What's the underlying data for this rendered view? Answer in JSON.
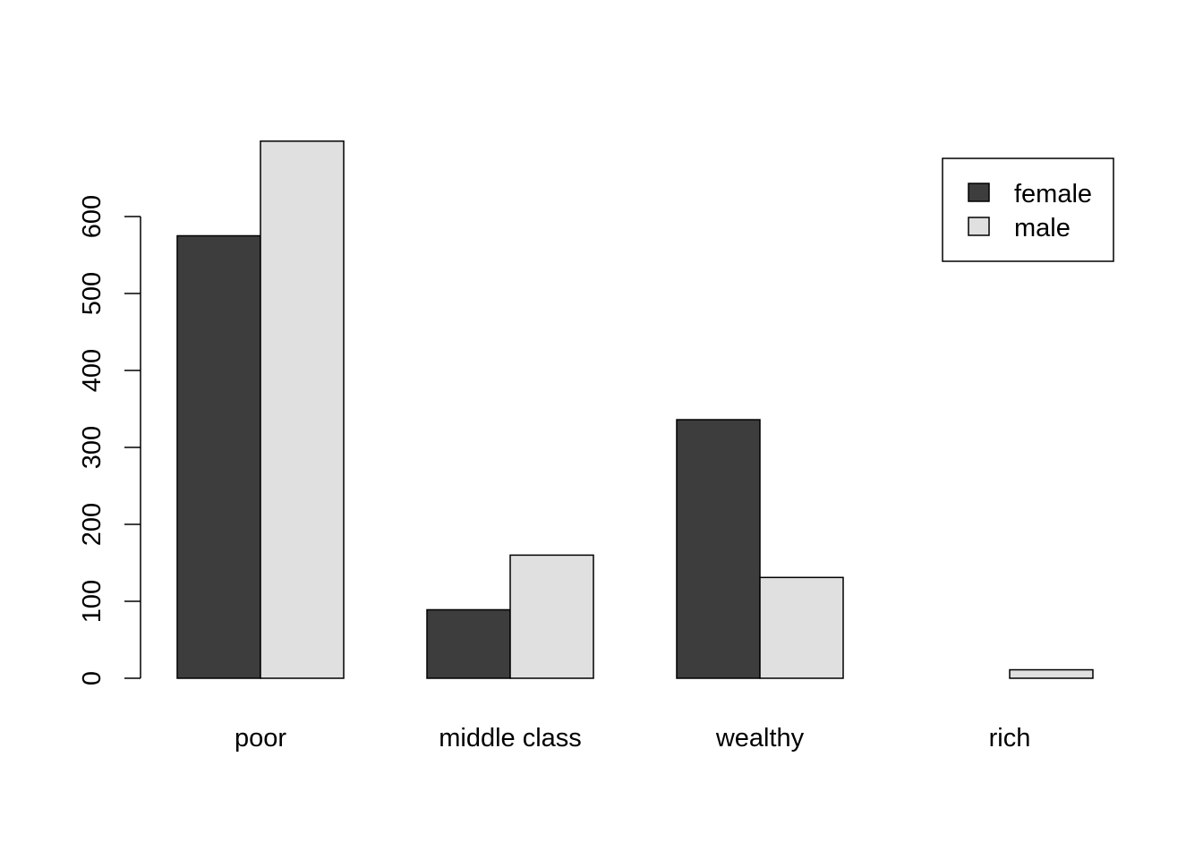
{
  "chart_data": {
    "type": "bar",
    "categories": [
      "poor",
      "middle class",
      "wealthy",
      "rich"
    ],
    "series": [
      {
        "name": "female",
        "values": [
          575,
          89,
          336,
          0
        ],
        "color": "#3d3d3d"
      },
      {
        "name": "male",
        "values": [
          698,
          160,
          131,
          11
        ],
        "color": "#e0e0e0"
      }
    ],
    "title": "",
    "xlabel": "",
    "ylabel": "",
    "ylim": [
      0,
      700
    ],
    "yticks": [
      0,
      100,
      200,
      300,
      400,
      500,
      600
    ],
    "legend_position": "top-right",
    "grid": false
  }
}
